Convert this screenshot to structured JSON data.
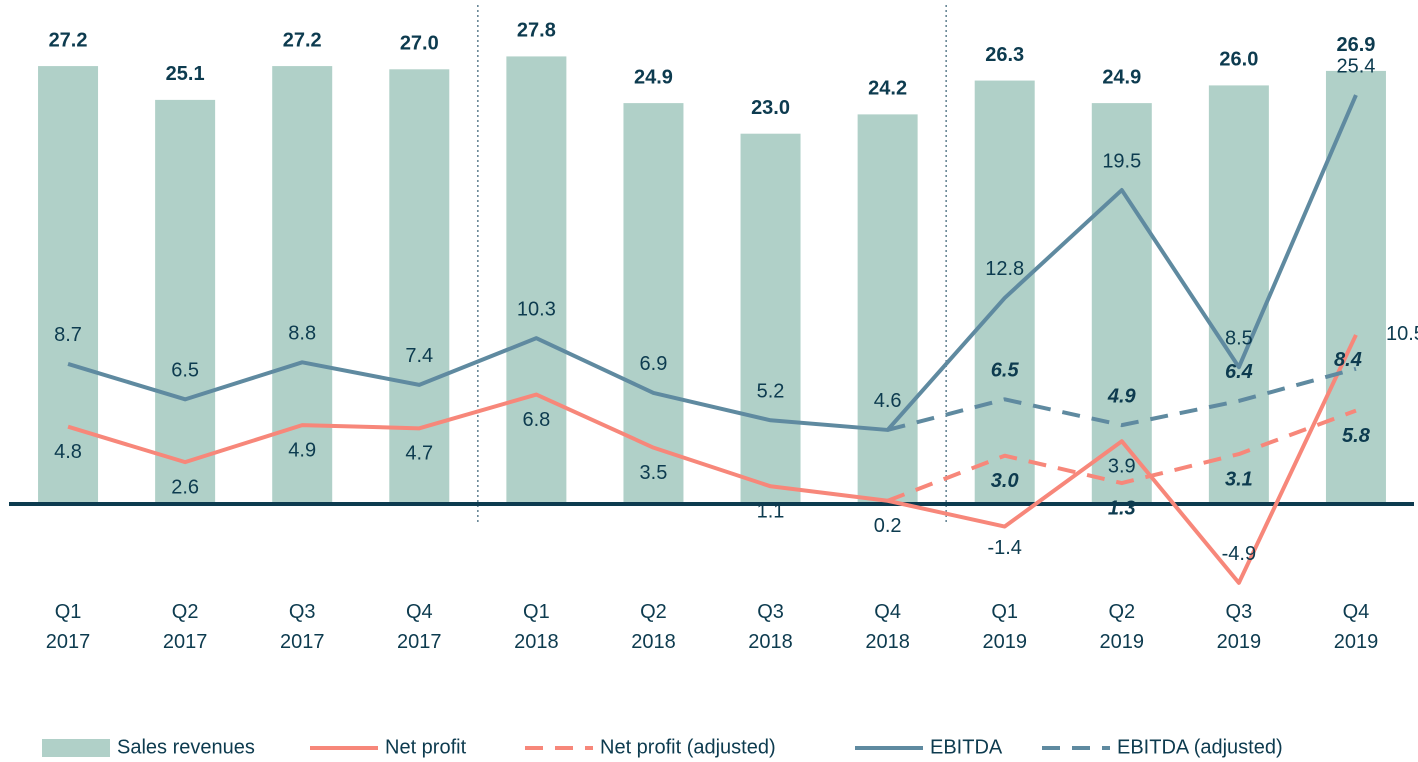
{
  "chart_data": {
    "type": "bar",
    "categories": [
      "Q1 2017",
      "Q2 2017",
      "Q3 2017",
      "Q4 2017",
      "Q1 2018",
      "Q2 2018",
      "Q3 2018",
      "Q4 2018",
      "Q1 2019",
      "Q2 2019",
      "Q3 2019",
      "Q4 2019"
    ],
    "ylim": [
      -6,
      31
    ],
    "series": [
      {
        "name": "Sales revenues",
        "type": "bar",
        "color": "#b0d0c8",
        "values": [
          27.2,
          25.1,
          27.2,
          27.0,
          27.8,
          24.9,
          23.0,
          24.2,
          26.3,
          24.9,
          26.0,
          26.9
        ],
        "value_labels": [
          "27.2",
          "25.1",
          "27.2",
          "27.0",
          "27.8",
          "24.9",
          "23.0",
          "24.2",
          "26.3",
          "24.9",
          "26.0",
          "26.9"
        ]
      },
      {
        "name": "Net profit",
        "type": "line",
        "color": "#f7877a",
        "values": [
          4.8,
          2.6,
          4.9,
          4.7,
          6.8,
          3.5,
          1.1,
          0.2,
          -1.4,
          3.9,
          -4.9,
          10.5
        ]
      },
      {
        "name": "Net profit (adjusted)",
        "type": "line",
        "dashed": true,
        "color": "#f7877a",
        "values": [
          null,
          null,
          null,
          null,
          null,
          null,
          null,
          0.2,
          3.0,
          1.3,
          3.1,
          5.8
        ],
        "value_labels": [
          null,
          null,
          null,
          null,
          null,
          null,
          null,
          null,
          "3.0",
          "1.3",
          "3.1",
          "5.8"
        ]
      },
      {
        "name": "EBITDA",
        "type": "line",
        "color": "#5f8aa0",
        "values": [
          8.7,
          6.5,
          8.8,
          7.4,
          10.3,
          6.9,
          5.2,
          4.6,
          12.8,
          19.5,
          8.5,
          25.4
        ]
      },
      {
        "name": "EBITDA (adjusted)",
        "type": "line",
        "dashed": true,
        "color": "#5f8aa0",
        "values": [
          null,
          null,
          null,
          null,
          null,
          null,
          null,
          4.6,
          6.5,
          4.9,
          6.4,
          8.4
        ],
        "value_labels": [
          null,
          null,
          null,
          null,
          null,
          null,
          null,
          null,
          "6.5",
          "4.9",
          "6.4",
          "8.4"
        ]
      }
    ]
  }
}
